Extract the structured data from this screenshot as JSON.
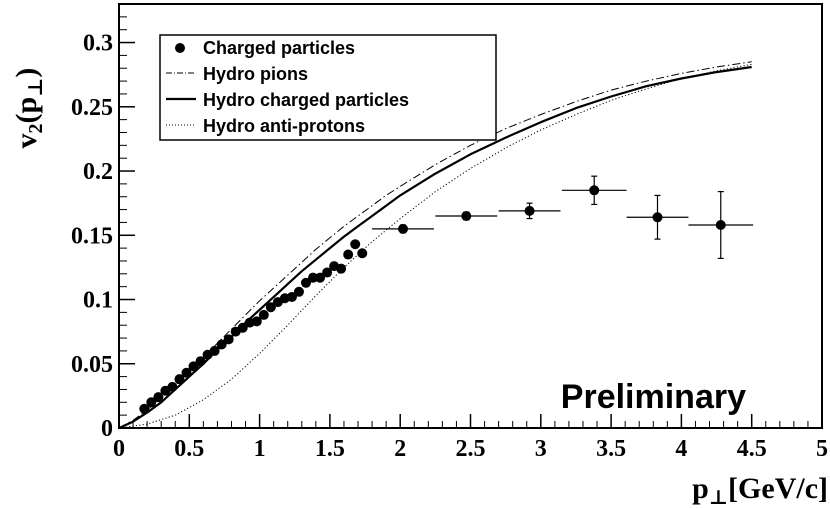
{
  "chart_data": {
    "type": "scatter",
    "title": "",
    "xlabel": "p⊥[GeV/c]",
    "ylabel": "v2(p⊥)",
    "xlabel_parts": {
      "main": "p",
      "sub": "⊥",
      "rest": "[GeV/c]"
    },
    "ylabel_parts": {
      "main": "v",
      "sub": "2",
      "open": "(",
      "inner": "p",
      "inner_sub": "⊥",
      "close": ")"
    },
    "xlim": [
      0,
      5
    ],
    "ylim": [
      0,
      0.33
    ],
    "x_ticks": [
      {
        "value": 0,
        "label": "0"
      },
      {
        "value": 0.5,
        "label": "0.5"
      },
      {
        "value": 1,
        "label": "1"
      },
      {
        "value": 1.5,
        "label": "1.5"
      },
      {
        "value": 2,
        "label": "2"
      },
      {
        "value": 2.5,
        "label": "2.5"
      },
      {
        "value": 3,
        "label": "3"
      },
      {
        "value": 3.5,
        "label": "3.5"
      },
      {
        "value": 4,
        "label": "4"
      },
      {
        "value": 4.5,
        "label": "4.5"
      },
      {
        "value": 5,
        "label": "5"
      }
    ],
    "y_ticks": [
      {
        "value": 0,
        "label": "0"
      },
      {
        "value": 0.05,
        "label": "0.05"
      },
      {
        "value": 0.1,
        "label": "0.1"
      },
      {
        "value": 0.15,
        "label": "0.15"
      },
      {
        "value": 0.2,
        "label": "0.2"
      },
      {
        "value": 0.25,
        "label": "0.25"
      },
      {
        "value": 0.3,
        "label": "0.3"
      }
    ],
    "annotation": "Preliminary",
    "legend_position": "top-left",
    "legend": [
      {
        "label": "Charged particles",
        "style": "marker"
      },
      {
        "label": "Hydro pions",
        "style": "dashdot"
      },
      {
        "label": "Hydro charged particles",
        "style": "solid"
      },
      {
        "label": "Hydro anti-protons",
        "style": "dotted"
      }
    ],
    "points": [
      {
        "x": 0.18,
        "y": 0.015
      },
      {
        "x": 0.23,
        "y": 0.02
      },
      {
        "x": 0.28,
        "y": 0.024
      },
      {
        "x": 0.33,
        "y": 0.029
      },
      {
        "x": 0.38,
        "y": 0.032
      },
      {
        "x": 0.43,
        "y": 0.038
      },
      {
        "x": 0.48,
        "y": 0.043
      },
      {
        "x": 0.53,
        "y": 0.048
      },
      {
        "x": 0.58,
        "y": 0.052
      },
      {
        "x": 0.63,
        "y": 0.057
      },
      {
        "x": 0.68,
        "y": 0.06
      },
      {
        "x": 0.73,
        "y": 0.065
      },
      {
        "x": 0.78,
        "y": 0.069
      },
      {
        "x": 0.83,
        "y": 0.075
      },
      {
        "x": 0.88,
        "y": 0.078
      },
      {
        "x": 0.93,
        "y": 0.082
      },
      {
        "x": 0.98,
        "y": 0.083
      },
      {
        "x": 1.03,
        "y": 0.088
      },
      {
        "x": 1.08,
        "y": 0.094
      },
      {
        "x": 1.13,
        "y": 0.098
      },
      {
        "x": 1.18,
        "y": 0.101
      },
      {
        "x": 1.23,
        "y": 0.102
      },
      {
        "x": 1.28,
        "y": 0.106
      },
      {
        "x": 1.33,
        "y": 0.113
      },
      {
        "x": 1.38,
        "y": 0.117
      },
      {
        "x": 1.43,
        "y": 0.117
      },
      {
        "x": 1.48,
        "y": 0.121
      },
      {
        "x": 1.53,
        "y": 0.126
      },
      {
        "x": 1.58,
        "y": 0.124
      },
      {
        "x": 1.63,
        "y": 0.135
      },
      {
        "x": 1.68,
        "y": 0.143
      },
      {
        "x": 1.73,
        "y": 0.136
      }
    ],
    "points_with_errors": [
      {
        "x": 2.02,
        "y": 0.155,
        "xerr": 0.22,
        "yerr": 0.003
      },
      {
        "x": 2.47,
        "y": 0.165,
        "xerr": 0.22,
        "yerr": 0.003
      },
      {
        "x": 2.92,
        "y": 0.169,
        "xerr": 0.22,
        "yerr": 0.006
      },
      {
        "x": 3.38,
        "y": 0.185,
        "xerr": 0.23,
        "yerr": 0.011
      },
      {
        "x": 3.83,
        "y": 0.164,
        "xerr": 0.22,
        "yerr": 0.017
      },
      {
        "x": 4.28,
        "y": 0.158,
        "xerr": 0.23,
        "yerr": 0.026
      }
    ],
    "series": [
      {
        "name": "Hydro pions",
        "style": "dashdot",
        "x": [
          0,
          0.1,
          0.2,
          0.3,
          0.4,
          0.5,
          0.6,
          0.7,
          0.8,
          0.9,
          1.0,
          1.1,
          1.2,
          1.3,
          1.4,
          1.5,
          1.6,
          1.7,
          1.8,
          1.9,
          2.0,
          2.25,
          2.5,
          2.75,
          3.0,
          3.25,
          3.5,
          3.75,
          4.0,
          4.25,
          4.5
        ],
        "y": [
          0,
          0.006,
          0.014,
          0.023,
          0.033,
          0.044,
          0.055,
          0.066,
          0.077,
          0.088,
          0.099,
          0.109,
          0.119,
          0.129,
          0.139,
          0.148,
          0.157,
          0.165,
          0.173,
          0.181,
          0.188,
          0.205,
          0.22,
          0.233,
          0.244,
          0.254,
          0.263,
          0.27,
          0.276,
          0.281,
          0.285
        ]
      },
      {
        "name": "Hydro charged particles",
        "style": "solid",
        "x": [
          0,
          0.1,
          0.2,
          0.3,
          0.4,
          0.5,
          0.6,
          0.7,
          0.8,
          0.9,
          1.0,
          1.1,
          1.2,
          1.3,
          1.4,
          1.5,
          1.6,
          1.7,
          1.8,
          1.9,
          2.0,
          2.25,
          2.5,
          2.75,
          3.0,
          3.25,
          3.5,
          3.75,
          4.0,
          4.25,
          4.5
        ],
        "y": [
          0,
          0.005,
          0.012,
          0.02,
          0.03,
          0.04,
          0.05,
          0.061,
          0.071,
          0.082,
          0.092,
          0.102,
          0.112,
          0.122,
          0.131,
          0.14,
          0.149,
          0.157,
          0.165,
          0.173,
          0.181,
          0.198,
          0.213,
          0.226,
          0.238,
          0.249,
          0.258,
          0.266,
          0.272,
          0.277,
          0.281
        ]
      },
      {
        "name": "Hydro anti-protons",
        "style": "dotted",
        "x": [
          0,
          0.2,
          0.4,
          0.6,
          0.8,
          1.0,
          1.2,
          1.4,
          1.6,
          1.8,
          2.0,
          2.25,
          2.5,
          2.75,
          3.0,
          3.25,
          3.5,
          3.75,
          4.0,
          4.25,
          4.5
        ],
        "y": [
          0,
          0.003,
          0.01,
          0.022,
          0.038,
          0.058,
          0.08,
          0.103,
          0.125,
          0.145,
          0.163,
          0.184,
          0.202,
          0.218,
          0.232,
          0.244,
          0.255,
          0.264,
          0.272,
          0.278,
          0.283
        ]
      }
    ]
  }
}
